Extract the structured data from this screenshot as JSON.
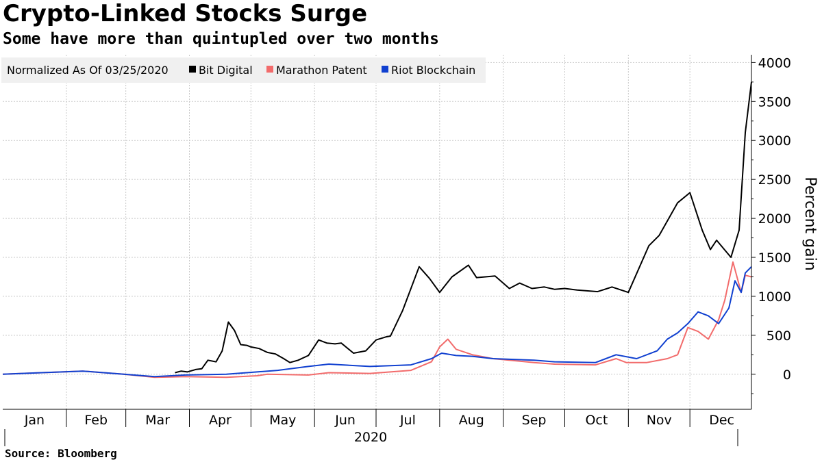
{
  "header": {
    "title": "Crypto-Linked Stocks Surge",
    "subtitle": "Some have more than quintupled over two months"
  },
  "footer": {
    "source": "Source: Bloomberg"
  },
  "legend": {
    "note": "Normalized As Of 03/25/2020",
    "items": [
      {
        "label": "Bit Digital",
        "color": "#000000"
      },
      {
        "label": "Marathon Patent",
        "color": "#f26b6b"
      },
      {
        "label": "Riot Blockchain",
        "color": "#1040d0"
      }
    ]
  },
  "chart_data": {
    "type": "line",
    "ylabel": "Percent gain",
    "year_label": "2020",
    "ylim": [
      -450,
      4100
    ],
    "yticks": [
      0,
      500,
      1000,
      1500,
      2000,
      2500,
      3000,
      3500,
      4000
    ],
    "xlim": [
      1,
      366
    ],
    "month_labels": [
      "Jan",
      "Feb",
      "Mar",
      "Apr",
      "May",
      "Jun",
      "Jul",
      "Aug",
      "Sep",
      "Oct",
      "Nov",
      "Dec"
    ],
    "grid": true,
    "legend_position": "top-left",
    "series": [
      {
        "name": "Bit Digital",
        "color": "#000000",
        "x": [
          85,
          88,
          91,
          95,
          98,
          101,
          105,
          108,
          111,
          114,
          117,
          120,
          122,
          126,
          130,
          134,
          138,
          141,
          145,
          150,
          155,
          159,
          163,
          166,
          172,
          178,
          183,
          188,
          190,
          196,
          204,
          209,
          214,
          220,
          228,
          232,
          241,
          248,
          253,
          259,
          265,
          270,
          275,
          281,
          291,
          298,
          306,
          316,
          321,
          330,
          336,
          342,
          346,
          349,
          356,
          360,
          363,
          366
        ],
        "y": [
          20,
          40,
          30,
          60,
          70,
          180,
          160,
          300,
          670,
          560,
          380,
          370,
          350,
          330,
          280,
          260,
          200,
          150,
          180,
          240,
          440,
          400,
          390,
          400,
          270,
          300,
          440,
          480,
          490,
          820,
          1380,
          1230,
          1050,
          1250,
          1400,
          1240,
          1260,
          1100,
          1170,
          1100,
          1120,
          1090,
          1100,
          1080,
          1060,
          1120,
          1050,
          1650,
          1780,
          2200,
          2330,
          1850,
          1600,
          1720,
          1500,
          1850,
          3100,
          3750
        ]
      },
      {
        "name": "Marathon Patent",
        "color": "#f26b6b",
        "x": [
          1,
          20,
          40,
          60,
          75,
          90,
          110,
          125,
          130,
          150,
          160,
          180,
          200,
          210,
          214,
          218,
          222,
          230,
          240,
          260,
          270,
          290,
          300,
          305,
          315,
          325,
          330,
          335,
          340,
          345,
          350,
          353,
          357,
          361,
          363,
          366
        ],
        "y": [
          0,
          20,
          40,
          0,
          -40,
          -30,
          -40,
          -20,
          0,
          -10,
          20,
          10,
          50,
          160,
          350,
          450,
          320,
          250,
          200,
          150,
          130,
          120,
          200,
          150,
          150,
          200,
          250,
          600,
          550,
          450,
          700,
          950,
          1440,
          1050,
          1270,
          1250
        ]
      },
      {
        "name": "Riot Blockchain",
        "color": "#1040d0",
        "x": [
          1,
          20,
          40,
          60,
          75,
          90,
          110,
          125,
          135,
          150,
          160,
          180,
          200,
          210,
          215,
          222,
          230,
          240,
          260,
          270,
          290,
          300,
          310,
          320,
          325,
          330,
          335,
          340,
          345,
          350,
          355,
          358,
          361,
          363,
          366
        ],
        "y": [
          0,
          20,
          40,
          0,
          -30,
          -10,
          0,
          30,
          50,
          100,
          130,
          100,
          120,
          200,
          270,
          240,
          230,
          200,
          180,
          160,
          150,
          250,
          200,
          300,
          450,
          530,
          650,
          800,
          750,
          650,
          850,
          1200,
          1050,
          1300,
          1380
        ]
      }
    ]
  }
}
